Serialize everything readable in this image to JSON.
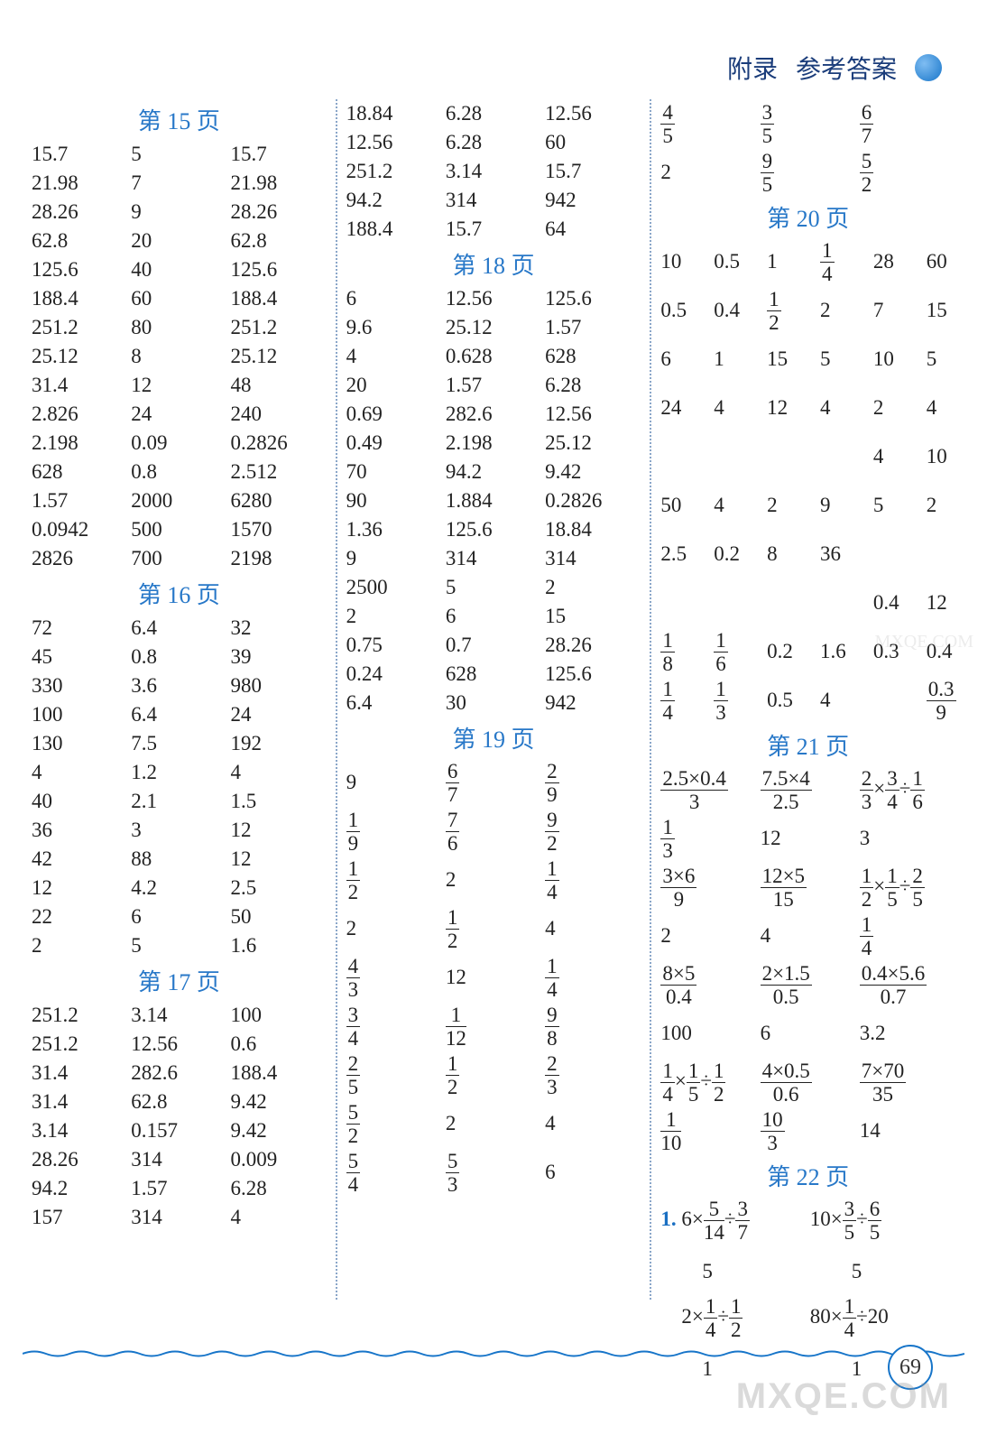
{
  "header": {
    "appendix": "附录",
    "title": "参考答案"
  },
  "page_number": "69",
  "watermark": "MXQE.COM",
  "columns": [
    {
      "blocks": [
        {
          "title": "第 15 页",
          "cols": 3,
          "rows": [
            [
              "15.7",
              "5",
              "15.7"
            ],
            [
              "21.98",
              "7",
              "21.98"
            ],
            [
              "28.26",
              "9",
              "28.26"
            ],
            [
              "62.8",
              "20",
              "62.8"
            ],
            [
              "125.6",
              "40",
              "125.6"
            ],
            [
              "188.4",
              "60",
              "188.4"
            ],
            [
              "251.2",
              "80",
              "251.2"
            ],
            [
              "25.12",
              "8",
              "25.12"
            ],
            [
              "31.4",
              "12",
              "48"
            ],
            [
              "2.826",
              "24",
              "240"
            ],
            [
              "2.198",
              "0.09",
              "0.2826"
            ],
            [
              "628",
              "0.8",
              "2.512"
            ],
            [
              "1.57",
              "2000",
              "6280"
            ],
            [
              "0.0942",
              "500",
              "1570"
            ],
            [
              "2826",
              "700",
              "2198"
            ]
          ]
        },
        {
          "title": "第 16 页",
          "cols": 3,
          "rows": [
            [
              "72",
              "6.4",
              "32"
            ],
            [
              "45",
              "0.8",
              "39"
            ],
            [
              "330",
              "3.6",
              "980"
            ],
            [
              "100",
              "6.4",
              "24"
            ],
            [
              "130",
              "7.5",
              "192"
            ],
            [
              "4",
              "1.2",
              "4"
            ],
            [
              "40",
              "2.1",
              "1.5"
            ],
            [
              "36",
              "3",
              "12"
            ],
            [
              "42",
              "88",
              "12"
            ],
            [
              "12",
              "4.2",
              "2.5"
            ],
            [
              "22",
              "6",
              "50"
            ],
            [
              "2",
              "5",
              "1.6"
            ]
          ]
        },
        {
          "title": "第 17 页",
          "cols": 3,
          "rows": [
            [
              "251.2",
              "3.14",
              "100"
            ],
            [
              "251.2",
              "12.56",
              "0.6"
            ],
            [
              "31.4",
              "282.6",
              "188.4"
            ],
            [
              "31.4",
              "62.8",
              "9.42"
            ],
            [
              "3.14",
              "0.157",
              "9.42"
            ],
            [
              "28.26",
              "314",
              "0.009"
            ],
            [
              "94.2",
              "1.57",
              "6.28"
            ],
            [
              "157",
              "314",
              "4"
            ]
          ]
        }
      ]
    },
    {
      "blocks": [
        {
          "title": null,
          "cols": 3,
          "rows": [
            [
              "18.84",
              "6.28",
              "12.56"
            ],
            [
              "12.56",
              "6.28",
              "60"
            ],
            [
              "251.2",
              "3.14",
              "15.7"
            ],
            [
              "94.2",
              "314",
              "942"
            ],
            [
              "188.4",
              "15.7",
              "64"
            ]
          ]
        },
        {
          "title": "第 18 页",
          "cols": 3,
          "rows": [
            [
              "6",
              "12.56",
              "125.6"
            ],
            [
              "9.6",
              "25.12",
              "1.57"
            ],
            [
              "4",
              "0.628",
              "628"
            ],
            [
              "20",
              "1.57",
              "6.28"
            ],
            [
              "0.69",
              "282.6",
              "12.56"
            ],
            [
              "0.49",
              "2.198",
              "25.12"
            ],
            [
              "70",
              "94.2",
              "9.42"
            ],
            [
              "90",
              "1.884",
              "0.2826"
            ],
            [
              "1.36",
              "125.6",
              "18.84"
            ],
            [
              "9",
              "314",
              "314"
            ],
            [
              "2500",
              "5",
              "2"
            ],
            [
              "2",
              "6",
              "15"
            ],
            [
              "0.75",
              "0.7",
              "28.26"
            ],
            [
              "0.24",
              "628",
              "125.6"
            ],
            [
              "6.4",
              "30",
              "942"
            ]
          ]
        },
        {
          "title": "第 19 页",
          "cols": 3,
          "tall": true,
          "rows": [
            [
              "9",
              {
                "f": [
                  "6",
                  "7"
                ]
              },
              {
                "f": [
                  "2",
                  "9"
                ]
              }
            ],
            [
              {
                "f": [
                  "1",
                  "9"
                ]
              },
              {
                "f": [
                  "7",
                  "6"
                ]
              },
              {
                "f": [
                  "9",
                  "2"
                ]
              }
            ],
            [
              {
                "f": [
                  "1",
                  "2"
                ]
              },
              "2",
              {
                "f": [
                  "1",
                  "4"
                ]
              }
            ],
            [
              "2",
              {
                "f": [
                  "1",
                  "2"
                ]
              },
              "4"
            ],
            [
              {
                "f": [
                  "4",
                  "3"
                ]
              },
              "12",
              {
                "f": [
                  "1",
                  "4"
                ]
              }
            ],
            [
              {
                "f": [
                  "3",
                  "4"
                ]
              },
              {
                "f": [
                  "1",
                  "12"
                ]
              },
              {
                "f": [
                  "9",
                  "8"
                ]
              }
            ],
            [
              {
                "f": [
                  "2",
                  "5"
                ]
              },
              {
                "f": [
                  "1",
                  "2"
                ]
              },
              {
                "f": [
                  "2",
                  "3"
                ]
              }
            ],
            [
              {
                "f": [
                  "5",
                  "2"
                ]
              },
              "2",
              "4"
            ],
            [
              {
                "f": [
                  "5",
                  "4"
                ]
              },
              {
                "f": [
                  "5",
                  "3"
                ]
              },
              "6"
            ]
          ]
        }
      ]
    },
    {
      "blocks": [
        {
          "title": null,
          "cols": 3,
          "tall": true,
          "rows": [
            [
              {
                "f": [
                  "4",
                  "5"
                ]
              },
              {
                "f": [
                  "3",
                  "5"
                ]
              },
              {
                "f": [
                  "6",
                  "7"
                ]
              }
            ],
            [
              "2",
              {
                "f": [
                  "9",
                  "5"
                ]
              },
              {
                "f": [
                  "5",
                  "2"
                ]
              }
            ]
          ]
        },
        {
          "title": "第 20 页",
          "cols": 6,
          "tall": true,
          "rows": [
            [
              "10",
              "0.5",
              "1",
              {
                "f": [
                  "1",
                  "4"
                ]
              },
              "28",
              "60"
            ],
            [
              "0.5",
              "0.4",
              {
                "f": [
                  "1",
                  "2"
                ]
              },
              "2",
              "7",
              "15"
            ],
            [
              "6",
              "1",
              "15",
              "5",
              "10",
              "5"
            ],
            [
              "24",
              "4",
              "12",
              "4",
              "2",
              "4"
            ],
            [
              "",
              "",
              "",
              "",
              "4",
              "10"
            ],
            [
              "50",
              "4",
              "2",
              "9",
              "5",
              "2"
            ],
            [
              "2.5",
              "0.2",
              "8",
              "36",
              "",
              ""
            ],
            [
              "",
              "",
              "",
              "",
              "0.4",
              "12"
            ],
            [
              {
                "f": [
                  "1",
                  "8"
                ]
              },
              {
                "f": [
                  "1",
                  "6"
                ]
              },
              "0.2",
              "1.6",
              "0.3",
              "0.4"
            ],
            [
              {
                "f": [
                  "1",
                  "4"
                ]
              },
              {
                "f": [
                  "1",
                  "3"
                ]
              },
              "0.5",
              "4",
              "",
              {
                "f": [
                  "0.3",
                  "9"
                ]
              }
            ]
          ]
        },
        {
          "title": "第 21 页",
          "cols": 3,
          "tall": true,
          "rows": [
            [
              {
                "f": [
                  "2.5×0.4",
                  "3"
                ]
              },
              {
                "f": [
                  "7.5×4",
                  "2.5"
                ]
              },
              {
                "html": "<span class='frac'><span class='n'>2</span><span class='d'>3</span></span>×<span class='frac'><span class='n'>3</span><span class='d'>4</span></span>÷<span class='frac'><span class='n'>1</span><span class='d'>6</span></span>"
              }
            ],
            [
              {
                "f": [
                  "1",
                  "3"
                ]
              },
              "12",
              "3"
            ],
            [
              {
                "f": [
                  "3×6",
                  "9"
                ]
              },
              {
                "f": [
                  "12×5",
                  "15"
                ]
              },
              {
                "html": "<span class='frac'><span class='n'>1</span><span class='d'>2</span></span>×<span class='frac'><span class='n'>1</span><span class='d'>5</span></span>÷<span class='frac'><span class='n'>2</span><span class='d'>5</span></span>"
              }
            ],
            [
              "2",
              "4",
              {
                "f": [
                  "1",
                  "4"
                ]
              }
            ],
            [
              {
                "f": [
                  "8×5",
                  "0.4"
                ]
              },
              {
                "f": [
                  "2×1.5",
                  "0.5"
                ]
              },
              {
                "f": [
                  "0.4×5.6",
                  "0.7"
                ]
              }
            ],
            [
              "100",
              "6",
              "3.2"
            ],
            [
              {
                "html": "<span class='frac'><span class='n'>1</span><span class='d'>4</span></span>×<span class='frac'><span class='n'>1</span><span class='d'>5</span></span>÷<span class='frac'><span class='n'>1</span><span class='d'>2</span></span>"
              },
              {
                "f": [
                  "4×0.5",
                  "0.6"
                ]
              },
              {
                "f": [
                  "7×70",
                  "35"
                ]
              }
            ],
            [
              {
                "f": [
                  "1",
                  "10"
                ]
              },
              {
                "f": [
                  "10",
                  "3"
                ]
              },
              "14"
            ]
          ]
        },
        {
          "title": "第 22 页",
          "cols": 2,
          "tall": true,
          "rows": [
            [
              {
                "html": "<span class='blue'>1.</span> 6×<span class='frac'><span class='n'>5</span><span class='d'>14</span></span>÷<span class='frac'><span class='n'>3</span><span class='d'>7</span></span>"
              },
              {
                "html": "10×<span class='frac'><span class='n'>3</span><span class='d'>5</span></span>÷<span class='frac'><span class='n'>6</span><span class='d'>5</span></span>"
              }
            ],
            [
              "　　5",
              "　　5"
            ],
            [
              {
                "html": "　2×<span class='frac'><span class='n'>1</span><span class='d'>4</span></span>÷<span class='frac'><span class='n'>1</span><span class='d'>2</span></span>"
              },
              {
                "html": "80×<span class='frac'><span class='n'>1</span><span class='d'>4</span></span>÷20"
              }
            ],
            [
              "　　1",
              "　　1"
            ]
          ]
        }
      ]
    }
  ]
}
